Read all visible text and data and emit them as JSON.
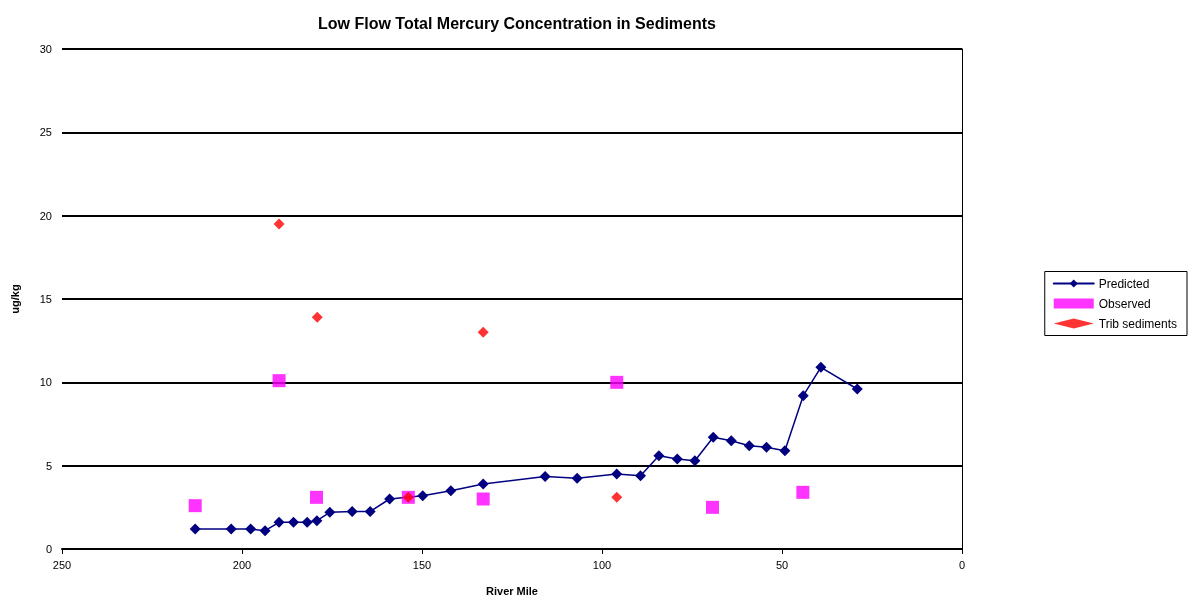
{
  "chart_data": {
    "type": "scatter",
    "title": "Low Flow Total Mercury Concentration in Sediments",
    "xlabel": "River Mile",
    "ylabel": "ug/kg",
    "xlim": [
      250,
      0
    ],
    "xticks": [
      250,
      200,
      150,
      100,
      50,
      0
    ],
    "ylim": [
      0,
      30
    ],
    "yticks": [
      0,
      5,
      10,
      15,
      20,
      25,
      30
    ],
    "grid": "y",
    "legend": "right",
    "series": [
      {
        "name": "Predicted",
        "type": "line",
        "color": "#000080",
        "marker": "diamond",
        "line_style": "solid",
        "x": [
          213,
          203,
          197.6,
          193.6,
          189.7,
          185.7,
          181.9,
          179.2,
          175.6,
          169.4,
          164.4,
          159,
          149.8,
          142,
          133,
          115.8,
          106.9,
          95.9,
          89.3,
          84.2,
          79.1,
          74.2,
          69.1,
          64.1,
          59.1,
          54.3,
          49.2,
          44.1,
          39.2,
          29.1
        ],
        "values": [
          1.2,
          1.2,
          1.2,
          1.1,
          1.6,
          1.6,
          1.6,
          1.7,
          2.2,
          2.25,
          2.25,
          3.0,
          3.2,
          3.5,
          3.9,
          4.35,
          4.25,
          4.5,
          4.4,
          5.6,
          5.4,
          5.3,
          6.7,
          6.5,
          6.2,
          6.1,
          5.9,
          9.2,
          10.9,
          9.6
        ]
      },
      {
        "name": "Observed",
        "color": "#ff00ff",
        "marker": "square",
        "x": [
          213,
          189.7,
          179.3,
          153.8,
          133,
          95.9,
          69.3,
          44.2
        ],
        "values": [
          2.6,
          10.1,
          3.1,
          3.1,
          3.0,
          10.0,
          2.5,
          3.4
        ]
      },
      {
        "name": "Trib sediments",
        "color": "#ff0000",
        "marker": "diamond",
        "x": [
          189.7,
          179.1,
          153.8,
          133,
          95.9
        ],
        "values": [
          19.5,
          13.9,
          3.1,
          13.0,
          3.1
        ]
      }
    ]
  }
}
